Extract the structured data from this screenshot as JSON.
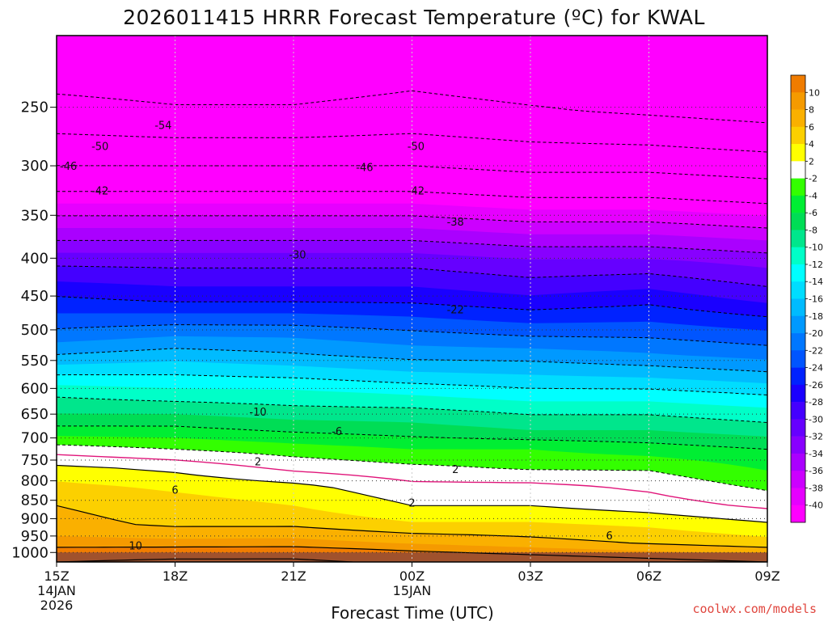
{
  "chart_data": {
    "type": "heatmap",
    "title": "2026011415 HRRR Forecast Temperature (ºC) for KWAL",
    "xlabel": "Forecast Time (UTC)",
    "ylabel": "",
    "credit": "coolwx.com/models",
    "x_ticks": [
      {
        "label": "15Z",
        "sub1": "14JAN",
        "sub2": "2026",
        "hour": 0
      },
      {
        "label": "18Z",
        "sub1": "",
        "sub2": "",
        "hour": 3
      },
      {
        "label": "21Z",
        "sub1": "",
        "sub2": "",
        "hour": 6
      },
      {
        "label": "00Z",
        "sub1": "15JAN",
        "sub2": "",
        "hour": 9
      },
      {
        "label": "03Z",
        "sub1": "",
        "sub2": "",
        "hour": 12
      },
      {
        "label": "06Z",
        "sub1": "",
        "sub2": "",
        "hour": 15
      },
      {
        "label": "09Z",
        "sub1": "",
        "sub2": "",
        "hour": 18
      }
    ],
    "xlim": [
      0,
      18
    ],
    "y_axis": "pressure (hPa), reversed log scale",
    "ylim": [
      1030,
      200
    ],
    "y_ticks": [
      250,
      300,
      350,
      400,
      450,
      500,
      550,
      600,
      650,
      700,
      750,
      800,
      850,
      900,
      950,
      1000
    ],
    "grid": "dotted, on tick positions",
    "colorbar": {
      "placement": "right",
      "ticks": [
        10,
        8,
        6,
        4,
        2,
        -2,
        -4,
        -6,
        -8,
        -10,
        -12,
        -14,
        -16,
        -18,
        -20,
        -22,
        -24,
        -26,
        -28,
        -30,
        -32,
        -34,
        -36,
        -38,
        -40
      ],
      "bands": [
        {
          "lo": 10,
          "hi": 12,
          "color": "#f07c00"
        },
        {
          "lo": 8,
          "hi": 10,
          "color": "#f59a00"
        },
        {
          "lo": 6,
          "hi": 8,
          "color": "#fab000"
        },
        {
          "lo": 4,
          "hi": 6,
          "color": "#fcd000"
        },
        {
          "lo": 2,
          "hi": 4,
          "color": "#ffff00"
        },
        {
          "lo": -2,
          "hi": 2,
          "color": "#ffffff"
        },
        {
          "lo": -4,
          "hi": -2,
          "color": "#33ff00"
        },
        {
          "lo": -6,
          "hi": -4,
          "color": "#00ee33"
        },
        {
          "lo": -8,
          "hi": -6,
          "color": "#00dd55"
        },
        {
          "lo": -10,
          "hi": -8,
          "color": "#00e68c"
        },
        {
          "lo": -12,
          "hi": -10,
          "color": "#00ffc8"
        },
        {
          "lo": -14,
          "hi": -12,
          "color": "#00ffff"
        },
        {
          "lo": -16,
          "hi": -14,
          "color": "#00ddff"
        },
        {
          "lo": -18,
          "hi": -16,
          "color": "#00bbff"
        },
        {
          "lo": -20,
          "hi": -18,
          "color": "#0099ff"
        },
        {
          "lo": -22,
          "hi": -20,
          "color": "#0077ff"
        },
        {
          "lo": -24,
          "hi": -22,
          "color": "#0055ff"
        },
        {
          "lo": -26,
          "hi": -24,
          "color": "#0022ff"
        },
        {
          "lo": -28,
          "hi": -26,
          "color": "#1a00ff"
        },
        {
          "lo": -30,
          "hi": -28,
          "color": "#4400ff"
        },
        {
          "lo": -32,
          "hi": -30,
          "color": "#6600ff"
        },
        {
          "lo": -34,
          "hi": -32,
          "color": "#8800ff"
        },
        {
          "lo": -36,
          "hi": -34,
          "color": "#aa00ff"
        },
        {
          "lo": -38,
          "hi": -36,
          "color": "#cc00ff"
        },
        {
          "lo": -40,
          "hi": -38,
          "color": "#e600ff"
        },
        {
          "lo": -42,
          "hi": -40,
          "color": "#ff00ff"
        }
      ]
    },
    "ground_color": "#a0522d",
    "ground_level_hpa": 1000,
    "temperature_profile": {
      "levels": [
        1030,
        1000,
        975,
        950,
        925,
        900,
        875,
        850,
        825,
        800,
        775,
        750,
        725,
        700,
        650,
        600,
        550,
        500,
        450,
        400,
        350,
        300,
        250,
        200
      ],
      "hours": [
        0,
        3,
        6,
        9,
        12,
        15,
        18
      ],
      "rows": [
        [
          14,
          15,
          15,
          13,
          12,
          11,
          10
        ],
        [
          10,
          11,
          11,
          10,
          9,
          8,
          7
        ],
        [
          9,
          9,
          9,
          8,
          7,
          6,
          5
        ],
        [
          8,
          7,
          8,
          7,
          6,
          5,
          4
        ],
        [
          7,
          6,
          6,
          5,
          5,
          4,
          3
        ],
        [
          6,
          5,
          5,
          3,
          3,
          3,
          1
        ],
        [
          6,
          5,
          4,
          2,
          2,
          1,
          0
        ],
        [
          6,
          5,
          4,
          2,
          2,
          1,
          -1
        ],
        [
          5,
          4,
          3,
          1,
          1,
          0,
          -2
        ],
        [
          4,
          3,
          2,
          0,
          0,
          -1,
          -3
        ],
        [
          3,
          2,
          0,
          -1,
          -2,
          -2,
          -4
        ],
        [
          1,
          0,
          -2,
          -3,
          -3,
          -3,
          -5
        ],
        [
          -1,
          -2,
          -3,
          -4,
          -4,
          -5,
          -6
        ],
        [
          -4,
          -4,
          -5,
          -6,
          -7,
          -7,
          -8
        ],
        [
          -8,
          -8,
          -9,
          -9,
          -10,
          -10,
          -11
        ],
        [
          -11,
          -12,
          -12,
          -13,
          -14,
          -14,
          -15
        ],
        [
          -17,
          -16,
          -17,
          -18,
          -18,
          -19,
          -20
        ],
        [
          -22,
          -21,
          -21,
          -22,
          -23,
          -23,
          -24
        ],
        [
          -26,
          -27,
          -27,
          -27,
          -28,
          -27,
          -29
        ],
        [
          -31,
          -31,
          -31,
          -31,
          -32,
          -32,
          -33
        ],
        [
          -38,
          -38,
          -38,
          -38,
          -39,
          -39,
          -40
        ],
        [
          -46,
          -46,
          -46,
          -46,
          -47,
          -47,
          -48
        ],
        [
          -53,
          -54,
          -54,
          -53,
          -54,
          -55,
          -56
        ],
        [
          -58,
          -58,
          -58,
          -57,
          -58,
          -58,
          -58
        ]
      ]
    },
    "contour_interval": 4,
    "contour_labels": [
      {
        "text": "-54",
        "hour": 2.7,
        "level": 264
      },
      {
        "text": "-50",
        "hour": 1.1,
        "level": 282
      },
      {
        "text": "-50",
        "hour": 9.1,
        "level": 282
      },
      {
        "text": "-46",
        "hour": 0.3,
        "level": 300
      },
      {
        "text": "-46",
        "hour": 7.8,
        "level": 301
      },
      {
        "text": "-42",
        "hour": 1.1,
        "level": 324
      },
      {
        "text": "-42",
        "hour": 9.1,
        "level": 324
      },
      {
        "text": "-38",
        "hour": 10.1,
        "level": 357
      },
      {
        "text": "-30",
        "hour": 6.1,
        "level": 395
      },
      {
        "text": "-22",
        "hour": 10.1,
        "level": 469
      },
      {
        "text": "-10",
        "hour": 5.1,
        "level": 645
      },
      {
        "text": "-6",
        "hour": 7.1,
        "level": 685
      },
      {
        "text": "2",
        "hour": 5.1,
        "level": 753
      },
      {
        "text": "2",
        "hour": 10.1,
        "level": 771
      },
      {
        "text": "6",
        "hour": 3.0,
        "level": 822
      },
      {
        "text": "2",
        "hour": 9.0,
        "level": 856
      },
      {
        "text": "6",
        "hour": 14.0,
        "level": 948
      },
      {
        "text": "10",
        "hour": 2.0,
        "level": 978
      }
    ]
  }
}
